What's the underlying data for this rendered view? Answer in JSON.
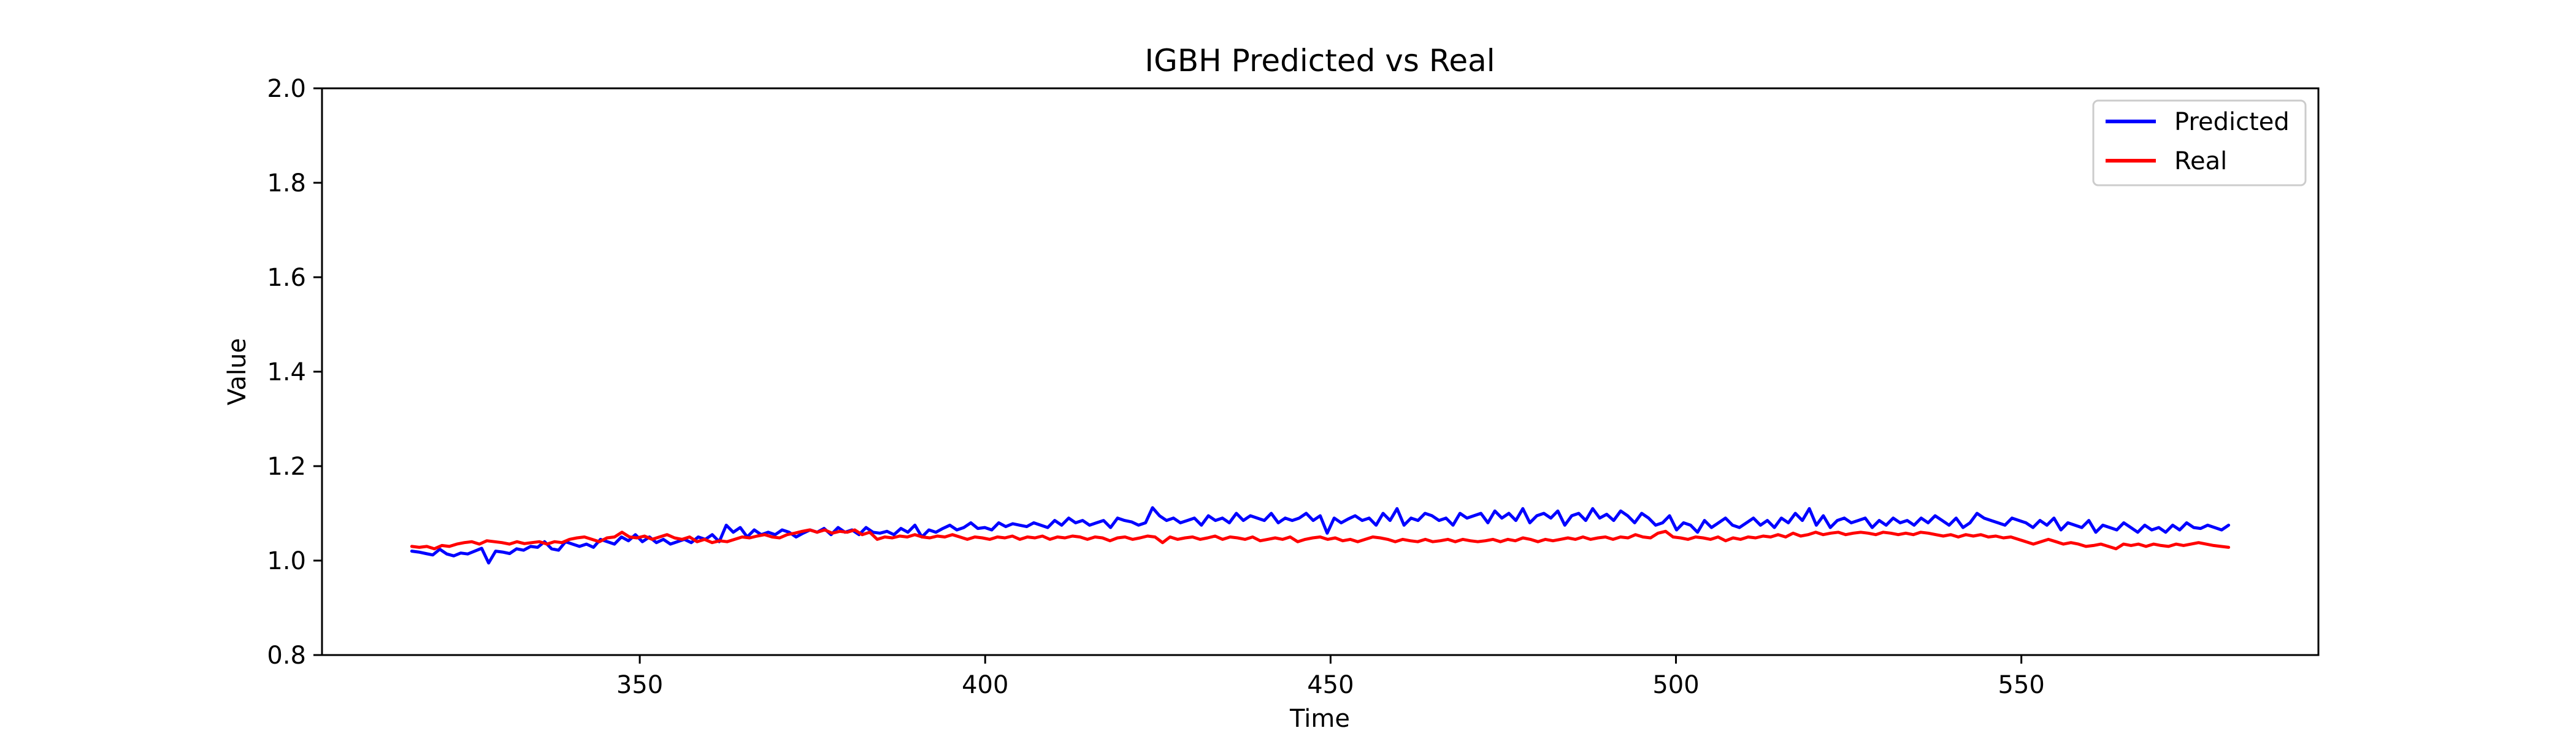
{
  "chart_data": {
    "type": "line",
    "title": "IGBH Predicted vs Real",
    "xlabel": "Time",
    "ylabel": "Value",
    "xlim": [
      304,
      593
    ],
    "ylim": [
      0.8,
      2.0
    ],
    "xticks": [
      350,
      400,
      450,
      500,
      550
    ],
    "yticks": [
      0.8,
      1.0,
      1.2,
      1.4,
      1.6,
      1.8,
      2.0
    ],
    "ytick_labels": [
      "0.8",
      "1.0",
      "1.2",
      "1.4",
      "1.6",
      "1.8",
      "2.0"
    ],
    "grid": false,
    "legend_position": "top-right",
    "x_start": 317,
    "x_end": 580,
    "series": [
      {
        "name": "Predicted",
        "color": "#0000ff",
        "values": [
          1.02,
          1.018,
          1.015,
          1.012,
          1.024,
          1.014,
          1.01,
          1.016,
          1.014,
          1.02,
          1.026,
          0.995,
          1.02,
          1.018,
          1.015,
          1.025,
          1.022,
          1.03,
          1.028,
          1.04,
          1.025,
          1.022,
          1.04,
          1.035,
          1.03,
          1.035,
          1.028,
          1.045,
          1.04,
          1.035,
          1.05,
          1.042,
          1.055,
          1.04,
          1.05,
          1.038,
          1.045,
          1.035,
          1.04,
          1.045,
          1.038,
          1.05,
          1.045,
          1.055,
          1.04,
          1.075,
          1.06,
          1.07,
          1.05,
          1.065,
          1.055,
          1.06,
          1.055,
          1.065,
          1.06,
          1.05,
          1.058,
          1.065,
          1.06,
          1.068,
          1.055,
          1.07,
          1.06,
          1.065,
          1.055,
          1.07,
          1.06,
          1.058,
          1.062,
          1.055,
          1.068,
          1.06,
          1.075,
          1.05,
          1.065,
          1.06,
          1.068,
          1.075,
          1.065,
          1.07,
          1.08,
          1.068,
          1.07,
          1.065,
          1.08,
          1.072,
          1.078,
          1.075,
          1.072,
          1.08,
          1.075,
          1.07,
          1.085,
          1.075,
          1.09,
          1.08,
          1.085,
          1.075,
          1.08,
          1.085,
          1.07,
          1.09,
          1.085,
          1.082,
          1.075,
          1.08,
          1.112,
          1.095,
          1.085,
          1.09,
          1.08,
          1.085,
          1.09,
          1.075,
          1.095,
          1.085,
          1.09,
          1.08,
          1.1,
          1.085,
          1.095,
          1.09,
          1.085,
          1.1,
          1.08,
          1.09,
          1.085,
          1.09,
          1.1,
          1.085,
          1.095,
          1.058,
          1.09,
          1.08,
          1.088,
          1.095,
          1.085,
          1.09,
          1.075,
          1.1,
          1.085,
          1.11,
          1.075,
          1.09,
          1.085,
          1.1,
          1.095,
          1.085,
          1.09,
          1.075,
          1.1,
          1.09,
          1.095,
          1.1,
          1.08,
          1.105,
          1.09,
          1.1,
          1.085,
          1.11,
          1.08,
          1.095,
          1.1,
          1.09,
          1.105,
          1.075,
          1.095,
          1.1,
          1.085,
          1.11,
          1.09,
          1.098,
          1.085,
          1.105,
          1.095,
          1.08,
          1.1,
          1.09,
          1.075,
          1.08,
          1.095,
          1.065,
          1.08,
          1.075,
          1.06,
          1.085,
          1.07,
          1.08,
          1.09,
          1.075,
          1.07,
          1.08,
          1.09,
          1.075,
          1.085,
          1.07,
          1.09,
          1.08,
          1.1,
          1.085,
          1.11,
          1.075,
          1.095,
          1.07,
          1.085,
          1.09,
          1.08,
          1.085,
          1.09,
          1.07,
          1.085,
          1.075,
          1.09,
          1.08,
          1.085,
          1.075,
          1.09,
          1.08,
          1.095,
          1.085,
          1.075,
          1.09,
          1.07,
          1.08,
          1.1,
          1.09,
          1.085,
          1.08,
          1.075,
          1.09,
          1.085,
          1.08,
          1.07,
          1.085,
          1.075,
          1.09,
          1.065,
          1.08,
          1.075,
          1.07,
          1.085,
          1.06,
          1.075,
          1.07,
          1.065,
          1.08,
          1.07,
          1.06,
          1.075,
          1.065,
          1.07,
          1.06,
          1.075,
          1.065,
          1.08,
          1.07,
          1.068,
          1.075,
          1.07,
          1.065,
          1.075
        ]
      },
      {
        "name": "Real",
        "color": "#ff0000",
        "values": [
          1.03,
          1.028,
          1.03,
          1.025,
          1.032,
          1.03,
          1.035,
          1.038,
          1.04,
          1.035,
          1.042,
          1.04,
          1.038,
          1.035,
          1.04,
          1.036,
          1.038,
          1.04,
          1.035,
          1.04,
          1.038,
          1.045,
          1.048,
          1.05,
          1.045,
          1.04,
          1.048,
          1.05,
          1.06,
          1.05,
          1.048,
          1.052,
          1.045,
          1.05,
          1.055,
          1.048,
          1.045,
          1.05,
          1.04,
          1.045,
          1.038,
          1.042,
          1.04,
          1.045,
          1.05,
          1.048,
          1.052,
          1.055,
          1.05,
          1.048,
          1.055,
          1.058,
          1.062,
          1.065,
          1.06,
          1.065,
          1.058,
          1.062,
          1.06,
          1.065,
          1.055,
          1.06,
          1.045,
          1.05,
          1.048,
          1.052,
          1.05,
          1.055,
          1.05,
          1.048,
          1.052,
          1.05,
          1.055,
          1.05,
          1.045,
          1.05,
          1.048,
          1.045,
          1.05,
          1.048,
          1.052,
          1.045,
          1.05,
          1.048,
          1.052,
          1.045,
          1.05,
          1.048,
          1.052,
          1.05,
          1.045,
          1.05,
          1.048,
          1.042,
          1.048,
          1.05,
          1.045,
          1.048,
          1.052,
          1.05,
          1.038,
          1.05,
          1.045,
          1.048,
          1.05,
          1.045,
          1.048,
          1.052,
          1.045,
          1.05,
          1.048,
          1.045,
          1.05,
          1.042,
          1.045,
          1.048,
          1.045,
          1.05,
          1.04,
          1.045,
          1.048,
          1.05,
          1.045,
          1.048,
          1.042,
          1.045,
          1.04,
          1.045,
          1.05,
          1.048,
          1.045,
          1.04,
          1.045,
          1.042,
          1.04,
          1.045,
          1.04,
          1.042,
          1.045,
          1.04,
          1.045,
          1.042,
          1.04,
          1.042,
          1.045,
          1.04,
          1.045,
          1.042,
          1.048,
          1.045,
          1.04,
          1.045,
          1.042,
          1.045,
          1.048,
          1.045,
          1.05,
          1.045,
          1.048,
          1.05,
          1.045,
          1.05,
          1.048,
          1.055,
          1.05,
          1.048,
          1.058,
          1.062,
          1.05,
          1.048,
          1.045,
          1.05,
          1.048,
          1.045,
          1.05,
          1.042,
          1.048,
          1.045,
          1.05,
          1.048,
          1.052,
          1.05,
          1.055,
          1.05,
          1.058,
          1.052,
          1.055,
          1.06,
          1.055,
          1.058,
          1.06,
          1.055,
          1.058,
          1.06,
          1.058,
          1.055,
          1.06,
          1.058,
          1.055,
          1.058,
          1.055,
          1.06,
          1.058,
          1.055,
          1.052,
          1.055,
          1.05,
          1.055,
          1.052,
          1.055,
          1.05,
          1.052,
          1.048,
          1.05,
          1.045,
          1.04,
          1.035,
          1.04,
          1.045,
          1.04,
          1.035,
          1.038,
          1.035,
          1.03,
          1.032,
          1.035,
          1.03,
          1.025,
          1.035,
          1.032,
          1.035,
          1.03,
          1.035,
          1.032,
          1.03,
          1.035,
          1.032,
          1.035,
          1.038,
          1.035,
          1.032,
          1.03,
          1.028
        ]
      }
    ]
  }
}
